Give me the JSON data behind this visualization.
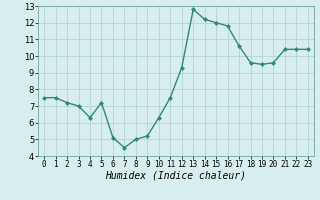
{
  "x": [
    0,
    1,
    2,
    3,
    4,
    5,
    6,
    7,
    8,
    9,
    10,
    11,
    12,
    13,
    14,
    15,
    16,
    17,
    18,
    19,
    20,
    21,
    22,
    23
  ],
  "y": [
    7.5,
    7.5,
    7.2,
    7.0,
    6.3,
    7.2,
    5.1,
    4.5,
    5.0,
    5.2,
    6.3,
    7.5,
    9.3,
    12.8,
    12.2,
    12.0,
    11.8,
    10.6,
    9.6,
    9.5,
    9.6,
    10.4,
    10.4,
    10.4
  ],
  "line_color": "#2e8b70",
  "marker": "D",
  "markersize": 2.0,
  "linewidth": 1.0,
  "bg_color": "#d8eeee",
  "grid_color": "#b8d8d8",
  "xlabel": "Humidex (Indice chaleur)",
  "xlabel_fontsize": 7,
  "tick_fontsize": 6,
  "xlim": [
    -0.5,
    23.5
  ],
  "ylim": [
    4,
    13
  ],
  "yticks": [
    4,
    5,
    6,
    7,
    8,
    9,
    10,
    11,
    12,
    13
  ],
  "xticks": [
    0,
    1,
    2,
    3,
    4,
    5,
    6,
    7,
    8,
    9,
    10,
    11,
    12,
    13,
    14,
    15,
    16,
    17,
    18,
    19,
    20,
    21,
    22,
    23
  ]
}
